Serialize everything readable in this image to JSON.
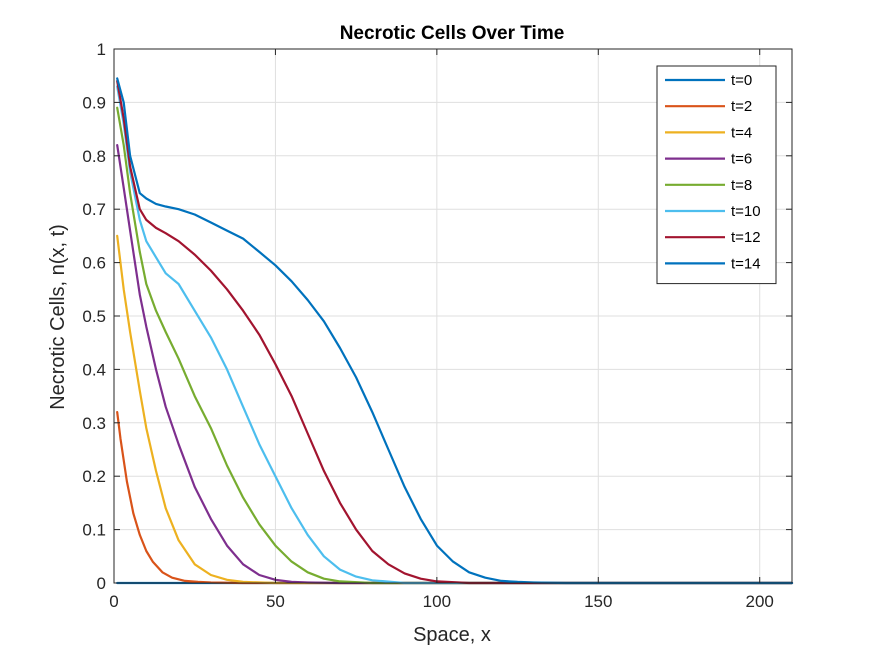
{
  "chart_data": {
    "type": "line",
    "title": "Necrotic Cells Over Time",
    "xlabel": "Space, x",
    "ylabel": "Necrotic Cells, n(x, t)",
    "xlim": [
      0,
      210
    ],
    "ylim": [
      0,
      1
    ],
    "xticks": [
      0,
      50,
      100,
      150,
      200
    ],
    "xtick_labels": [
      "0",
      "50",
      "100",
      "150",
      "200"
    ],
    "yticks": [
      0,
      0.1,
      0.2,
      0.3,
      0.4,
      0.5,
      0.6,
      0.7,
      0.8,
      0.9,
      1
    ],
    "ytick_labels": [
      "0",
      "0.1",
      "0.2",
      "0.3",
      "0.4",
      "0.5",
      "0.6",
      "0.7",
      "0.8",
      "0.9",
      "1"
    ],
    "grid": true,
    "legend_position": "top-right",
    "series": [
      {
        "name": "t=0",
        "color": "#0072BD",
        "x": [
          1,
          50,
          100,
          150,
          210
        ],
        "y": [
          0,
          0,
          0,
          0,
          0
        ]
      },
      {
        "name": "t=2",
        "color": "#D95319",
        "x": [
          1,
          2,
          4,
          6,
          8,
          10,
          12,
          15,
          18,
          22,
          26,
          30,
          40,
          210
        ],
        "y": [
          0.32,
          0.27,
          0.19,
          0.13,
          0.09,
          0.06,
          0.04,
          0.02,
          0.01,
          0.004,
          0.002,
          0.001,
          0,
          0
        ]
      },
      {
        "name": "t=4",
        "color": "#EDB120",
        "x": [
          1,
          3,
          5,
          8,
          10,
          13,
          16,
          20,
          25,
          30,
          35,
          40,
          50,
          210
        ],
        "y": [
          0.65,
          0.55,
          0.47,
          0.36,
          0.29,
          0.21,
          0.14,
          0.08,
          0.035,
          0.015,
          0.006,
          0.002,
          0,
          0
        ]
      },
      {
        "name": "t=6",
        "color": "#7E2F8E",
        "x": [
          1,
          3,
          5,
          8,
          10,
          13,
          16,
          20,
          25,
          30,
          35,
          40,
          45,
          50,
          55,
          60,
          70,
          210
        ],
        "y": [
          0.82,
          0.74,
          0.66,
          0.54,
          0.48,
          0.4,
          0.33,
          0.26,
          0.18,
          0.12,
          0.07,
          0.035,
          0.015,
          0.006,
          0.002,
          0.001,
          0,
          0
        ]
      },
      {
        "name": "t=8",
        "color": "#77AC30",
        "x": [
          1,
          3,
          5,
          8,
          10,
          13,
          16,
          20,
          25,
          30,
          35,
          40,
          45,
          50,
          55,
          60,
          65,
          70,
          80,
          210
        ],
        "y": [
          0.89,
          0.82,
          0.73,
          0.62,
          0.56,
          0.51,
          0.47,
          0.42,
          0.35,
          0.29,
          0.22,
          0.16,
          0.11,
          0.07,
          0.04,
          0.02,
          0.008,
          0.003,
          0,
          0
        ]
      },
      {
        "name": "t=10",
        "color": "#4DBEEE",
        "x": [
          1,
          3,
          5,
          8,
          10,
          13,
          16,
          20,
          25,
          30,
          35,
          40,
          45,
          50,
          55,
          60,
          65,
          70,
          75,
          80,
          90,
          210
        ],
        "y": [
          0.93,
          0.86,
          0.77,
          0.68,
          0.64,
          0.61,
          0.58,
          0.56,
          0.51,
          0.46,
          0.4,
          0.33,
          0.26,
          0.2,
          0.14,
          0.09,
          0.05,
          0.025,
          0.012,
          0.005,
          0,
          0
        ]
      },
      {
        "name": "t=12",
        "color": "#A2142F",
        "x": [
          1,
          3,
          5,
          8,
          10,
          13,
          16,
          20,
          25,
          30,
          35,
          40,
          45,
          50,
          55,
          60,
          65,
          70,
          75,
          80,
          85,
          90,
          95,
          100,
          110,
          210
        ],
        "y": [
          0.94,
          0.87,
          0.78,
          0.7,
          0.68,
          0.665,
          0.655,
          0.64,
          0.615,
          0.585,
          0.55,
          0.51,
          0.465,
          0.41,
          0.35,
          0.28,
          0.21,
          0.15,
          0.1,
          0.06,
          0.035,
          0.018,
          0.008,
          0.003,
          0,
          0
        ]
      },
      {
        "name": "t=14",
        "color": "#0072BD",
        "x": [
          1,
          3,
          5,
          8,
          10,
          13,
          16,
          20,
          25,
          30,
          35,
          40,
          45,
          50,
          55,
          60,
          65,
          70,
          75,
          80,
          85,
          90,
          95,
          100,
          105,
          110,
          115,
          120,
          125,
          130,
          140,
          210
        ],
        "y": [
          0.945,
          0.9,
          0.8,
          0.73,
          0.72,
          0.71,
          0.705,
          0.7,
          0.69,
          0.675,
          0.66,
          0.645,
          0.62,
          0.595,
          0.565,
          0.53,
          0.49,
          0.44,
          0.385,
          0.32,
          0.25,
          0.18,
          0.12,
          0.07,
          0.04,
          0.02,
          0.01,
          0.004,
          0.002,
          0.001,
          0,
          0
        ]
      }
    ]
  }
}
